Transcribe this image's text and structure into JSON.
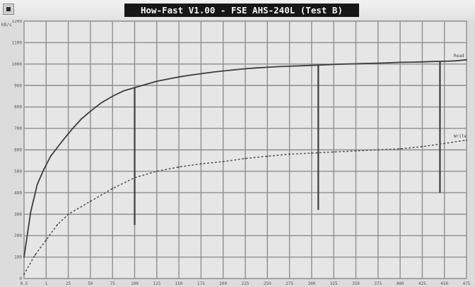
{
  "window": {
    "title": "How-Fast V1.00 - FSE AHS-240L (Test B)"
  },
  "chart_data": {
    "type": "line",
    "title": "How-Fast V1.00 - FSE AHS-240L (Test B)",
    "y_axis_unit_label": "KB/s",
    "x_ticks": [
      "0.5",
      "1",
      "25",
      "50",
      "75",
      "100",
      "125",
      "150",
      "175",
      "200",
      "225",
      "250",
      "275",
      "300",
      "325",
      "350",
      "375",
      "400",
      "425",
      "450",
      "475"
    ],
    "y_ticks": [
      "0",
      "100",
      "200",
      "300",
      "400",
      "500",
      "600",
      "700",
      "800",
      "900",
      "1000",
      "1100",
      "1200"
    ],
    "xlim": [
      0,
      20
    ],
    "ylim": [
      0,
      1200
    ],
    "grid": true,
    "legend": "right-end labels",
    "series": [
      {
        "name": "Read",
        "color": "#3c3c3c",
        "style": "solid",
        "x": [
          0,
          0.3,
          0.6,
          0.9,
          1.2,
          1.5,
          1.8,
          2.2,
          2.6,
          3.0,
          3.5,
          4.0,
          4.5,
          5.0,
          5.5,
          6.0,
          6.5,
          7.0,
          7.5,
          8.0,
          8.5,
          9.0,
          9.5,
          10.0,
          10.5,
          11.0,
          11.5,
          12.0,
          12.5,
          13.0,
          13.5,
          14.0,
          14.5,
          15.0,
          15.5,
          16.0,
          16.5,
          17.0,
          17.5,
          18.0,
          18.5,
          19.0,
          19.5,
          20.0
        ],
        "values": [
          100,
          310,
          440,
          510,
          570,
          610,
          650,
          700,
          745,
          780,
          820,
          850,
          875,
          890,
          905,
          920,
          930,
          940,
          948,
          955,
          962,
          968,
          973,
          978,
          982,
          985,
          988,
          990,
          992,
          994,
          996,
          998,
          1000,
          1001,
          1003,
          1004,
          1006,
          1008,
          1009,
          1010,
          1012,
          1013,
          1015,
          1020
        ],
        "dips": [
          {
            "x": 5.0,
            "y": 250
          },
          {
            "x": 13.3,
            "y": 320
          },
          {
            "x": 18.8,
            "y": 400
          }
        ],
        "end_label": "Read"
      },
      {
        "name": "Write",
        "color": "#555555",
        "style": "dotted",
        "x": [
          0,
          0.5,
          1.0,
          1.5,
          2.0,
          3.0,
          4.0,
          5.0,
          6.0,
          7.0,
          8.0,
          9.0,
          10.0,
          11.0,
          12.0,
          13.0,
          14.0,
          15.0,
          16.0,
          17.0,
          18.0,
          19.0,
          20.0
        ],
        "values": [
          20,
          110,
          180,
          250,
          300,
          360,
          420,
          470,
          500,
          520,
          535,
          545,
          560,
          570,
          580,
          585,
          590,
          595,
          600,
          605,
          615,
          630,
          645
        ],
        "end_label": "Write"
      }
    ]
  }
}
